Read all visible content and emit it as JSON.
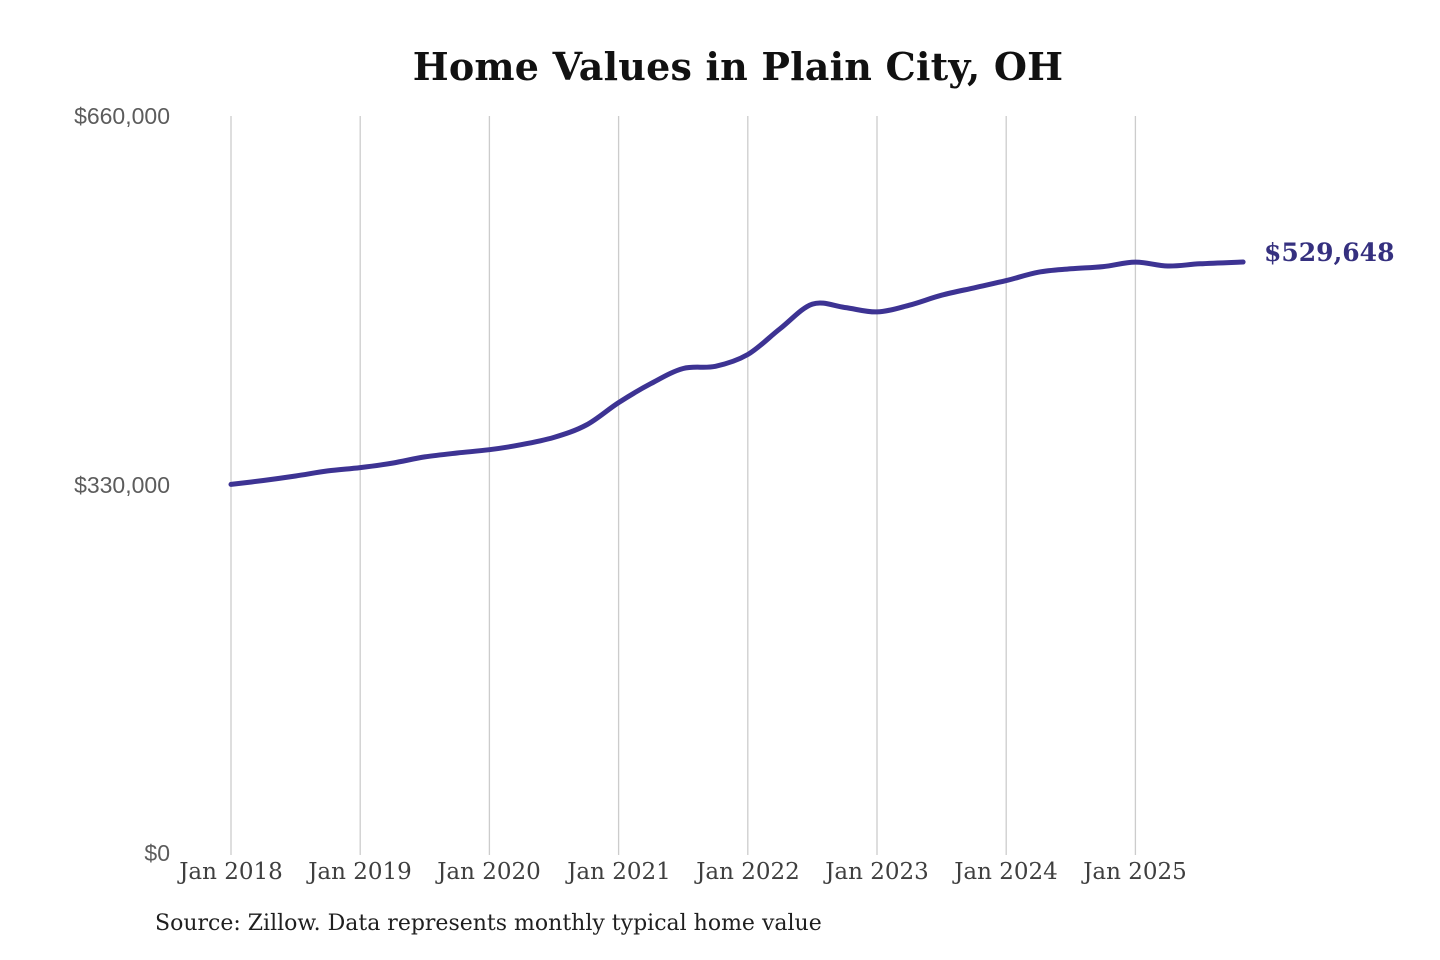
{
  "chart_data": {
    "type": "line",
    "title": "Home Values in Plain City, OH",
    "source_note": "Source: Zillow. Data represents monthly typical home value",
    "final_value_label": "$529,648",
    "final_value": 529648,
    "line_color": "#3d3393",
    "value_label_color": "#35307f",
    "grid_color": "#cccccc",
    "grid": "vertical-only",
    "legend": "none",
    "ylim": [
      0,
      660000
    ],
    "y_ticks": [
      "$0",
      "$330,000",
      "$660,000"
    ],
    "y_tick_values": [
      0,
      330000,
      660000
    ],
    "x_ticks": [
      "Jan 2018",
      "Jan 2019",
      "Jan 2020",
      "Jan 2021",
      "Jan 2022",
      "Jan 2023",
      "Jan 2024",
      "Jan 2025"
    ],
    "series": [
      {
        "name": "Monthly typical home value",
        "points": [
          [
            "2018-01",
            331000
          ],
          [
            "2018-04",
            334500
          ],
          [
            "2018-07",
            338500
          ],
          [
            "2018-10",
            343000
          ],
          [
            "2019-01",
            346000
          ],
          [
            "2019-04",
            350000
          ],
          [
            "2019-07",
            355500
          ],
          [
            "2019-10",
            359000
          ],
          [
            "2020-01",
            362000
          ],
          [
            "2020-04",
            366500
          ],
          [
            "2020-07",
            373000
          ],
          [
            "2020-10",
            384000
          ],
          [
            "2021-01",
            404000
          ],
          [
            "2021-04",
            421000
          ],
          [
            "2021-07",
            434500
          ],
          [
            "2021-10",
            436500
          ],
          [
            "2022-01",
            447000
          ],
          [
            "2022-04",
            470000
          ],
          [
            "2022-07",
            492000
          ],
          [
            "2022-10",
            489000
          ],
          [
            "2023-01",
            485000
          ],
          [
            "2023-04",
            491000
          ],
          [
            "2023-07",
            500000
          ],
          [
            "2023-10",
            506500
          ],
          [
            "2024-01",
            513000
          ],
          [
            "2024-04",
            520500
          ],
          [
            "2024-07",
            523500
          ],
          [
            "2024-10",
            525500
          ],
          [
            "2025-01",
            529500
          ],
          [
            "2025-04",
            526000
          ],
          [
            "2025-07",
            528000
          ],
          [
            "2025-11",
            529648
          ]
        ]
      }
    ]
  }
}
